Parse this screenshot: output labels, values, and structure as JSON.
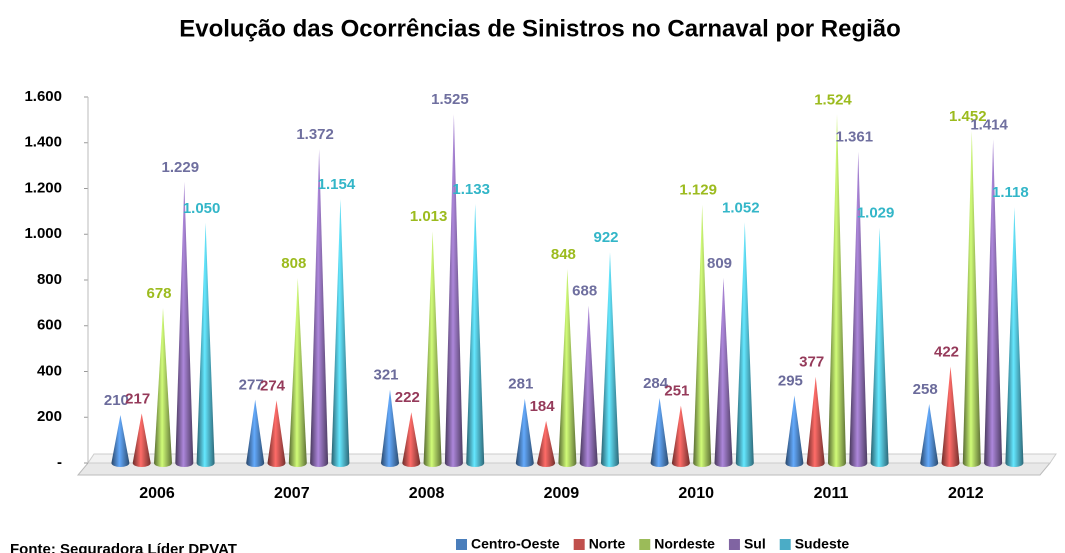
{
  "chart_data": {
    "type": "cone",
    "title": "Evolução das Ocorrências de Sinistros no Carnaval por Região",
    "source": "Fonte: Seguradora Líder DPVAT",
    "categories": [
      "2006",
      "2007",
      "2008",
      "2009",
      "2010",
      "2011",
      "2012"
    ],
    "series": [
      {
        "name": "Centro-Oeste",
        "color": "#4a7ebb",
        "label_color": "#6b6b9b",
        "values": [
          210,
          277,
          321,
          281,
          284,
          295,
          258
        ],
        "value_labels": [
          "210",
          "277",
          "321",
          "281",
          "284",
          "295",
          "258"
        ]
      },
      {
        "name": "Norte",
        "color": "#c0504d",
        "label_color": "#953a5a",
        "values": [
          217,
          274,
          222,
          184,
          251,
          377,
          422
        ],
        "value_labels": [
          "217",
          "274",
          "222",
          "184",
          "251",
          "377",
          "422"
        ]
      },
      {
        "name": "Nordeste",
        "color": "#9bbb59",
        "label_color": "#9cbb1e",
        "values": [
          678,
          808,
          1013,
          848,
          1129,
          1524,
          1452
        ],
        "value_labels": [
          "678",
          "808",
          "1.013",
          "848",
          "1.129",
          "1.524",
          "1.452"
        ]
      },
      {
        "name": "Sul",
        "color": "#8064a2",
        "label_color": "#6f6f9f",
        "values": [
          1229,
          1372,
          1525,
          688,
          809,
          1361,
          1414
        ],
        "value_labels": [
          "1.229",
          "1.372",
          "1.525",
          "688",
          "809",
          "1.361",
          "1.414"
        ]
      },
      {
        "name": "Sudeste",
        "color": "#4bacc6",
        "label_color": "#33b6c8",
        "values": [
          1050,
          1154,
          1133,
          922,
          1052,
          1029,
          1118
        ],
        "value_labels": [
          "1.050",
          "1.154",
          "1.133",
          "922",
          "1.052",
          "1.029",
          "1.118"
        ]
      }
    ],
    "ylim": [
      0,
      1600
    ],
    "yticks": [
      {
        "value": 0,
        "label": "-"
      },
      200,
      400,
      600,
      800,
      {
        "value": 1000,
        "label": "1.000"
      },
      {
        "value": 1200,
        "label": "1.200"
      },
      {
        "value": 1400,
        "label": "1.400"
      },
      {
        "value": 1600,
        "label": "1.600"
      }
    ],
    "legend": "bottom"
  }
}
